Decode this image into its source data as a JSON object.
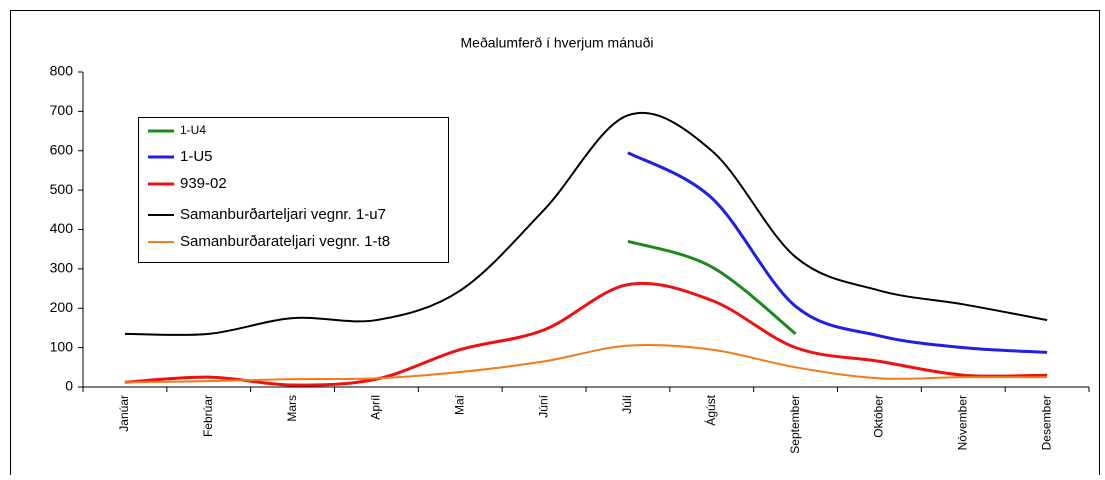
{
  "chart_data": {
    "type": "line",
    "title": "Meðalumferð í hverjum mánuði",
    "categories": [
      "Janúar",
      "Febrúar",
      "Mars",
      "Apríl",
      "Maí",
      "Júní",
      "Júlí",
      "Ágúst",
      "September",
      "Október",
      "Nóvember",
      "Desember"
    ],
    "series": [
      {
        "name": "1-U4",
        "color": "#1a8a1a",
        "values": [
          null,
          null,
          null,
          null,
          null,
          null,
          370,
          305,
          135,
          null,
          null,
          null
        ]
      },
      {
        "name": "1-U5",
        "color": "#1f1fe6",
        "values": [
          null,
          null,
          null,
          null,
          null,
          null,
          595,
          480,
          205,
          130,
          100,
          88
        ]
      },
      {
        "name": "939-02",
        "color": "#ee1111",
        "values": [
          12,
          25,
          5,
          20,
          95,
          145,
          260,
          220,
          100,
          65,
          30,
          30
        ]
      },
      {
        "name": "Samanburðarteljari vegnr. 1-u7",
        "color": "#000000",
        "values": [
          135,
          135,
          175,
          170,
          245,
          450,
          690,
          600,
          330,
          245,
          210,
          170
        ]
      },
      {
        "name": "Samanburðarateljari vegnr. 1-t8",
        "color": "#f07b1c",
        "values": [
          12,
          15,
          20,
          22,
          38,
          65,
          105,
          95,
          50,
          22,
          25,
          25
        ]
      }
    ],
    "ylim": [
      0,
      800
    ],
    "yticks": [
      0,
      100,
      200,
      300,
      400,
      500,
      600,
      700,
      800
    ]
  }
}
